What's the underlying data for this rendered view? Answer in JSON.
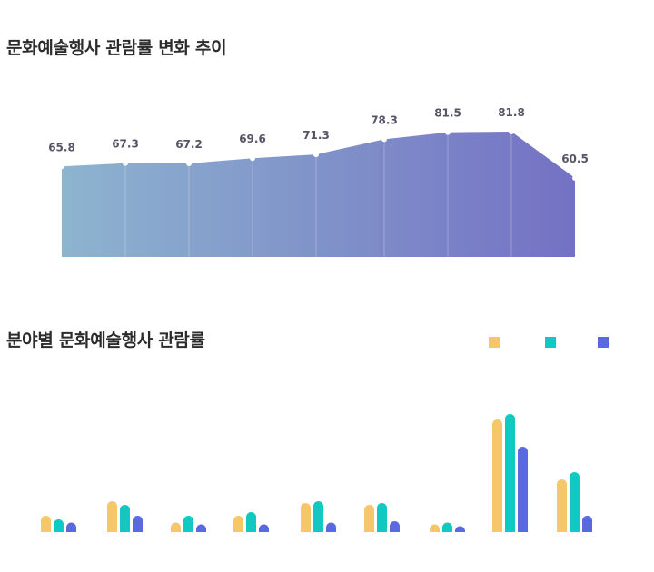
{
  "chart_data": [
    {
      "type": "area",
      "title": "문화예술행사 관람률 변화 추이",
      "values": [
        65.8,
        67.3,
        67.2,
        69.6,
        71.3,
        78.3,
        81.5,
        81.8,
        60.5
      ],
      "data_labels": [
        "65.8",
        "67.3",
        "67.2",
        "69.6",
        "71.3",
        "78.3",
        "81.5",
        "81.8",
        "60.5"
      ],
      "colors": {
        "start": "#8db4cf",
        "end": "#7471c4"
      }
    },
    {
      "type": "bar",
      "title": "분야별 문화예술행사 관람률",
      "legend": "top-right",
      "series": [
        {
          "color": "#f5c76a",
          "values": [
            4.5,
            8.5,
            2.5,
            4.5,
            8.0,
            7.5,
            1.5,
            31.0,
            14.5
          ]
        },
        {
          "color": "#11c9c0",
          "values": [
            3.5,
            7.5,
            4.5,
            5.5,
            8.5,
            8.0,
            2.5,
            32.5,
            16.5
          ]
        },
        {
          "color": "#5a69e0",
          "values": [
            2.5,
            4.5,
            1.5,
            1.5,
            2.5,
            3.0,
            0.5,
            23.5,
            4.5
          ]
        }
      ]
    }
  ]
}
